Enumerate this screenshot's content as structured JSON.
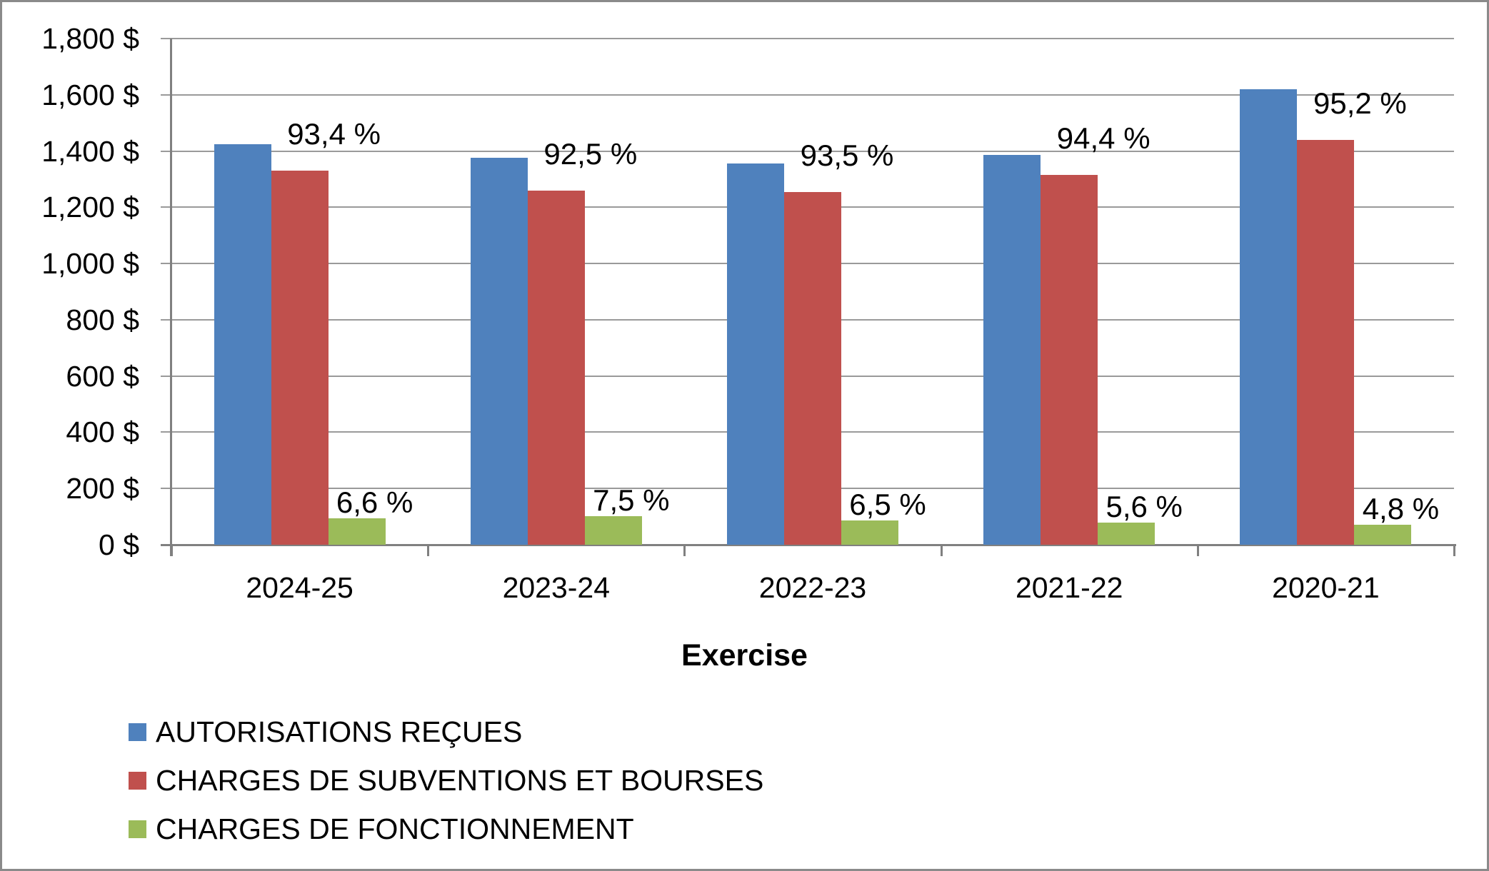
{
  "chart_data": {
    "type": "bar",
    "title": "",
    "xlabel": "Exercise",
    "ylabel": "",
    "ylim": [
      0,
      1800
    ],
    "ytick_step": 200,
    "ytick_labels": [
      "0 $",
      "200 $",
      "400 $",
      "600 $",
      "800 $",
      "1,000 $",
      "1,200 $",
      "1,400 $",
      "1,600 $",
      "1,800 $"
    ],
    "categories": [
      "2024-25",
      "2023-24",
      "2022-23",
      "2021-22",
      "2020-21"
    ],
    "series": [
      {
        "name": "AUTORISATIONS REÇUES",
        "color": "#4F81BD",
        "values": [
          1424,
          1376,
          1356,
          1386,
          1620
        ],
        "labels": [
          "",
          "",
          "",
          "",
          ""
        ]
      },
      {
        "name": "CHARGES DE SUBVENTIONS ET BOURSES",
        "color": "#C0504D",
        "values": [
          1330,
          1259,
          1254,
          1315,
          1440
        ],
        "labels": [
          "93,4 %",
          "92,5 %",
          "93,5 %",
          "94,4 %",
          "95,2 %"
        ]
      },
      {
        "name": "CHARGES DE FONCTIONNEMENT",
        "color": "#9BBB59",
        "values": [
          94,
          102,
          86,
          79,
          71
        ],
        "labels": [
          "6,6 %",
          "7,5 %",
          "6,5 %",
          "5,6 %",
          "4,8 %"
        ]
      }
    ],
    "grid": true,
    "legend_position": "bottom-left"
  },
  "frame": {
    "border_color": "#8a8a8a",
    "gridline_color": "#9a9a9a",
    "axis_color": "#808080"
  }
}
